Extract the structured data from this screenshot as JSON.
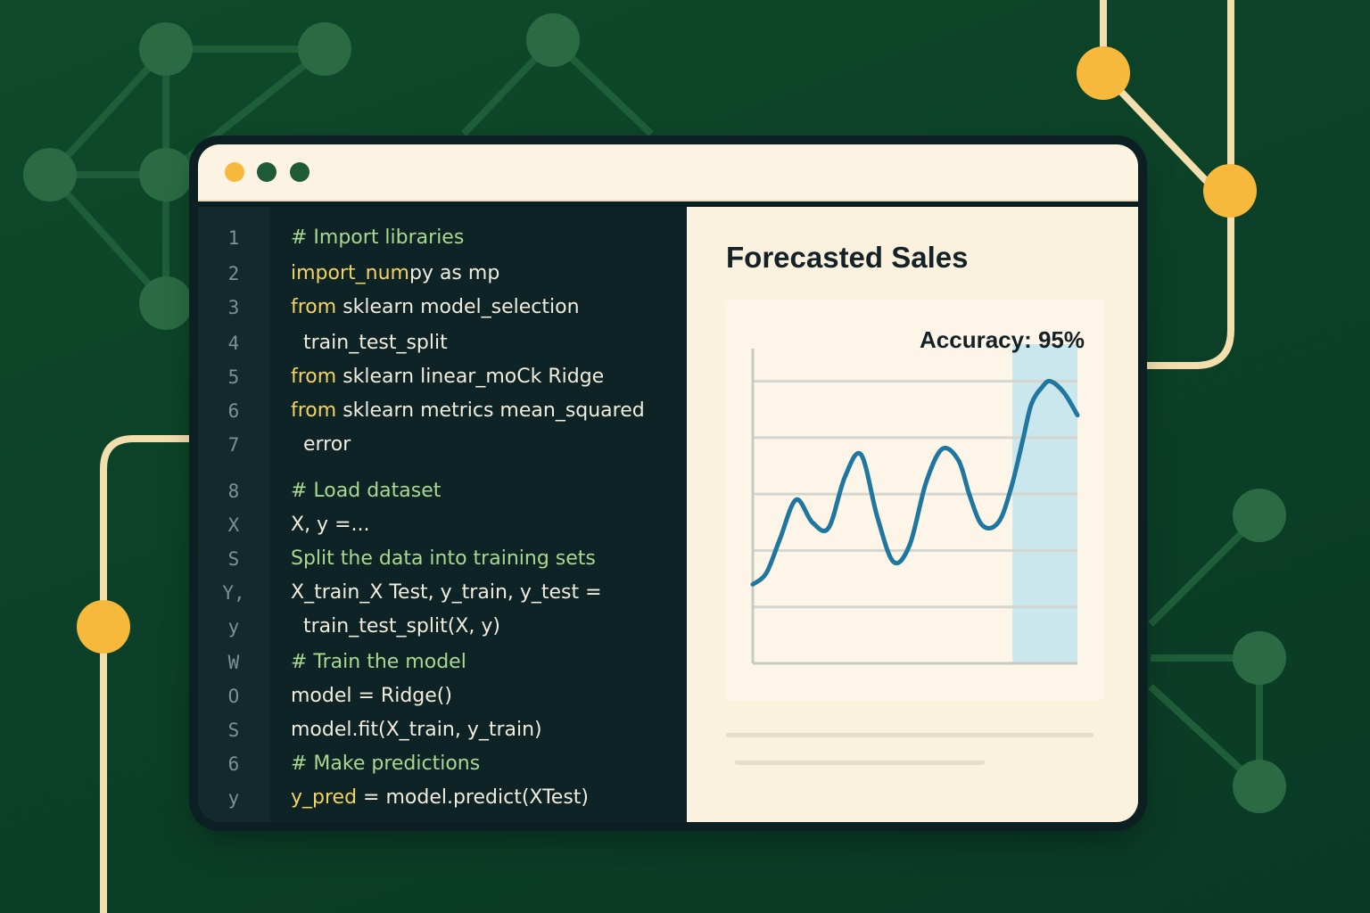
{
  "window": {
    "controls": [
      {
        "name": "minimize",
        "color": "#f6b93b"
      },
      {
        "name": "zoom",
        "color": "#1f5b36"
      },
      {
        "name": "close",
        "color": "#1f5b36"
      }
    ]
  },
  "editor": {
    "lines": [
      {
        "num": "1",
        "parts": [
          {
            "t": "# Import libraries",
            "c": "comment"
          }
        ]
      },
      {
        "num": "2",
        "parts": [
          {
            "t": "import_num",
            "c": "kw"
          },
          {
            "t": "py as mp",
            "c": ""
          }
        ]
      },
      {
        "num": "3",
        "parts": [
          {
            "t": "from",
            "c": "kw"
          },
          {
            "t": " sklearn model_selection",
            "c": ""
          }
        ]
      },
      {
        "num": "4",
        "parts": [
          {
            "t": "  train_test_split",
            "c": ""
          }
        ]
      },
      {
        "num": "5",
        "parts": [
          {
            "t": "from",
            "c": "kw"
          },
          {
            "t": " sklearn linear_moCk Ridge",
            "c": ""
          }
        ]
      },
      {
        "num": "6",
        "parts": [
          {
            "t": "from",
            "c": "kw"
          },
          {
            "t": " sklearn metrics mean_squared",
            "c": ""
          }
        ]
      },
      {
        "num": "7",
        "parts": [
          {
            "t": "  error",
            "c": ""
          }
        ]
      },
      {
        "num": "8",
        "parts": [
          {
            "t": "# Load ",
            "c": "comment"
          },
          {
            "t": "dataset",
            "c": "green"
          }
        ]
      },
      {
        "num": "X",
        "parts": [
          {
            "t": "X, y =...",
            "c": ""
          }
        ]
      },
      {
        "num": "S",
        "parts": [
          {
            "t": "Split the data into training sets",
            "c": "green"
          }
        ]
      },
      {
        "num": "Y,",
        "parts": [
          {
            "t": "X_train_X Test, y_train, y_test =",
            "c": ""
          }
        ]
      },
      {
        "num": "y",
        "parts": [
          {
            "t": "  train_test_split(X, y)",
            "c": ""
          }
        ]
      },
      {
        "num": "W",
        "parts": [
          {
            "t": "# Train the model",
            "c": "comment"
          }
        ]
      },
      {
        "num": "O",
        "parts": [
          {
            "t": "model = Ridge()",
            "c": ""
          }
        ]
      },
      {
        "num": "S",
        "parts": [
          {
            "t": "model.fit(X_train, y_train)",
            "c": ""
          }
        ]
      },
      {
        "num": "6",
        "parts": [
          {
            "t": "# Make predictions",
            "c": "comment"
          }
        ]
      },
      {
        "num": "y",
        "parts": [
          {
            "t": "y_pred",
            "c": "kw"
          },
          {
            "t": " = model.predict(XTest)",
            "c": ""
          }
        ]
      }
    ]
  },
  "panel": {
    "title": "Forecasted Sales",
    "accuracy": "Accuracy: 95%"
  },
  "colors": {
    "background": "#0b3f27",
    "accent_yellow": "#f6b93b",
    "node_green": "#2a6b43",
    "line_blue": "#1f77a0",
    "forecast_fill": "#cbe7ee"
  },
  "chart_data": {
    "type": "line",
    "title": "",
    "xlabel": "",
    "ylabel": "",
    "xlim": [
      0,
      12
    ],
    "ylim": [
      0,
      5.5
    ],
    "x": [
      0,
      0.5,
      1,
      1.6,
      2.2,
      2.8,
      3.4,
      4,
      4.6,
      5.2,
      5.8,
      6.4,
      7,
      7.6,
      8,
      8.4,
      8.8,
      9.2,
      9.6,
      10,
      10.3,
      10.7,
      11,
      11.5,
      12
    ],
    "series": [
      {
        "values": [
          1.4,
          1.6,
          2.2,
          2.9,
          2.5,
          2.4,
          3.3,
          3.7,
          2.6,
          1.8,
          2.1,
          3.2,
          3.8,
          3.6,
          3.0,
          2.5,
          2.4,
          2.6,
          3.2,
          4.0,
          4.6,
          4.9,
          5.0,
          4.8,
          4.4
        ]
      }
    ],
    "forecast_region": [
      9.6,
      12
    ],
    "gridlines_y": [
      1,
      2,
      3,
      4,
      5
    ],
    "grid": true,
    "legend": "none"
  }
}
